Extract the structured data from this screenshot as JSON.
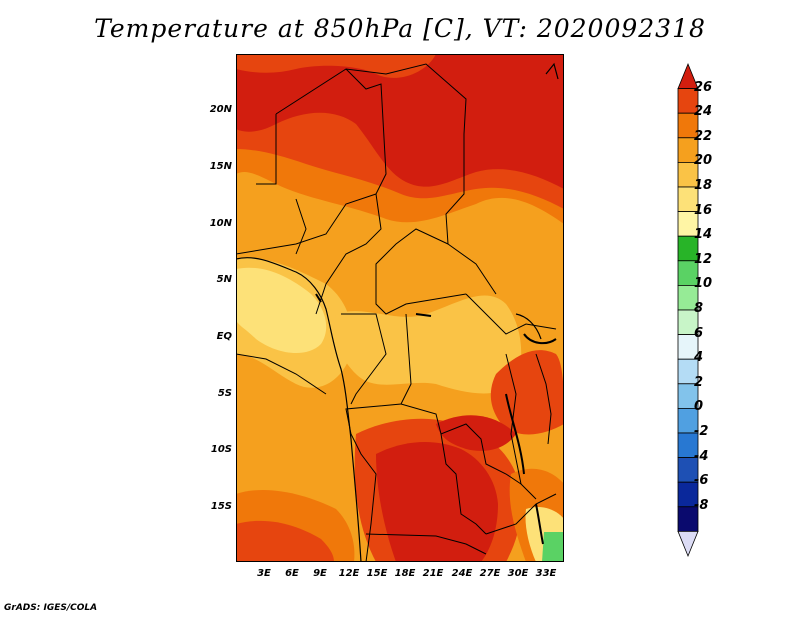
{
  "title": "Temperature at 850hPa [C], VT: 2020092318",
  "credit": "GrADS: IGES/COLA",
  "map": {
    "lat_ticks": [
      "20N",
      "15N",
      "10N",
      "5N",
      "EQ",
      "5S",
      "10S",
      "15S"
    ],
    "lon_ticks": [
      "3E",
      "6E",
      "9E",
      "12E",
      "15E",
      "18E",
      "21E",
      "24E",
      "27E",
      "30E",
      "33E"
    ],
    "lat_range": [
      -20,
      25
    ],
    "lon_range": [
      0,
      35
    ]
  },
  "colorbar": {
    "labels": [
      "26",
      "24",
      "22",
      "20",
      "18",
      "16",
      "14",
      "12",
      "10",
      "8",
      "6",
      "4",
      "2",
      "0",
      "-2",
      "-4",
      "-6",
      "-8"
    ],
    "colors": [
      "#d21e0f",
      "#e6450f",
      "#f0780a",
      "#f5a01e",
      "#fac346",
      "#fde178",
      "#fff5a5",
      "#28b428",
      "#5ad264",
      "#96eb96",
      "#c8f5c8",
      "#e6f5fa",
      "#b4dcf5",
      "#82c3eb",
      "#50a0e1",
      "#2878d2",
      "#1e50b4",
      "#0a289b",
      "#0a0a6e",
      "#dcdcf5"
    ]
  }
}
